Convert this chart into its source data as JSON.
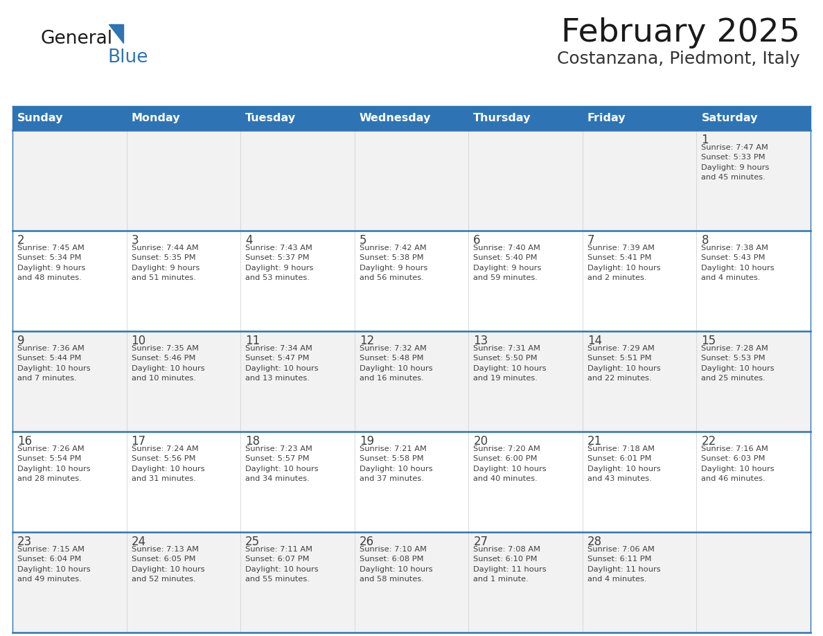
{
  "title": "February 2025",
  "subtitle": "Costanzana, Piedmont, Italy",
  "days_of_week": [
    "Sunday",
    "Monday",
    "Tuesday",
    "Wednesday",
    "Thursday",
    "Friday",
    "Saturday"
  ],
  "header_bg": "#2e74b5",
  "header_text": "#ffffff",
  "separator_color": "#2e74b5",
  "cell_bg_light": "#f2f2f2",
  "cell_bg_white": "#ffffff",
  "text_color": "#404040",
  "title_color": "#1a1a1a",
  "subtitle_color": "#333333",
  "calendar_data": [
    [
      {
        "day": null,
        "info": null
      },
      {
        "day": null,
        "info": null
      },
      {
        "day": null,
        "info": null
      },
      {
        "day": null,
        "info": null
      },
      {
        "day": null,
        "info": null
      },
      {
        "day": null,
        "info": null
      },
      {
        "day": 1,
        "info": "Sunrise: 7:47 AM\nSunset: 5:33 PM\nDaylight: 9 hours\nand 45 minutes."
      }
    ],
    [
      {
        "day": 2,
        "info": "Sunrise: 7:45 AM\nSunset: 5:34 PM\nDaylight: 9 hours\nand 48 minutes."
      },
      {
        "day": 3,
        "info": "Sunrise: 7:44 AM\nSunset: 5:35 PM\nDaylight: 9 hours\nand 51 minutes."
      },
      {
        "day": 4,
        "info": "Sunrise: 7:43 AM\nSunset: 5:37 PM\nDaylight: 9 hours\nand 53 minutes."
      },
      {
        "day": 5,
        "info": "Sunrise: 7:42 AM\nSunset: 5:38 PM\nDaylight: 9 hours\nand 56 minutes."
      },
      {
        "day": 6,
        "info": "Sunrise: 7:40 AM\nSunset: 5:40 PM\nDaylight: 9 hours\nand 59 minutes."
      },
      {
        "day": 7,
        "info": "Sunrise: 7:39 AM\nSunset: 5:41 PM\nDaylight: 10 hours\nand 2 minutes."
      },
      {
        "day": 8,
        "info": "Sunrise: 7:38 AM\nSunset: 5:43 PM\nDaylight: 10 hours\nand 4 minutes."
      }
    ],
    [
      {
        "day": 9,
        "info": "Sunrise: 7:36 AM\nSunset: 5:44 PM\nDaylight: 10 hours\nand 7 minutes."
      },
      {
        "day": 10,
        "info": "Sunrise: 7:35 AM\nSunset: 5:46 PM\nDaylight: 10 hours\nand 10 minutes."
      },
      {
        "day": 11,
        "info": "Sunrise: 7:34 AM\nSunset: 5:47 PM\nDaylight: 10 hours\nand 13 minutes."
      },
      {
        "day": 12,
        "info": "Sunrise: 7:32 AM\nSunset: 5:48 PM\nDaylight: 10 hours\nand 16 minutes."
      },
      {
        "day": 13,
        "info": "Sunrise: 7:31 AM\nSunset: 5:50 PM\nDaylight: 10 hours\nand 19 minutes."
      },
      {
        "day": 14,
        "info": "Sunrise: 7:29 AM\nSunset: 5:51 PM\nDaylight: 10 hours\nand 22 minutes."
      },
      {
        "day": 15,
        "info": "Sunrise: 7:28 AM\nSunset: 5:53 PM\nDaylight: 10 hours\nand 25 minutes."
      }
    ],
    [
      {
        "day": 16,
        "info": "Sunrise: 7:26 AM\nSunset: 5:54 PM\nDaylight: 10 hours\nand 28 minutes."
      },
      {
        "day": 17,
        "info": "Sunrise: 7:24 AM\nSunset: 5:56 PM\nDaylight: 10 hours\nand 31 minutes."
      },
      {
        "day": 18,
        "info": "Sunrise: 7:23 AM\nSunset: 5:57 PM\nDaylight: 10 hours\nand 34 minutes."
      },
      {
        "day": 19,
        "info": "Sunrise: 7:21 AM\nSunset: 5:58 PM\nDaylight: 10 hours\nand 37 minutes."
      },
      {
        "day": 20,
        "info": "Sunrise: 7:20 AM\nSunset: 6:00 PM\nDaylight: 10 hours\nand 40 minutes."
      },
      {
        "day": 21,
        "info": "Sunrise: 7:18 AM\nSunset: 6:01 PM\nDaylight: 10 hours\nand 43 minutes."
      },
      {
        "day": 22,
        "info": "Sunrise: 7:16 AM\nSunset: 6:03 PM\nDaylight: 10 hours\nand 46 minutes."
      }
    ],
    [
      {
        "day": 23,
        "info": "Sunrise: 7:15 AM\nSunset: 6:04 PM\nDaylight: 10 hours\nand 49 minutes."
      },
      {
        "day": 24,
        "info": "Sunrise: 7:13 AM\nSunset: 6:05 PM\nDaylight: 10 hours\nand 52 minutes."
      },
      {
        "day": 25,
        "info": "Sunrise: 7:11 AM\nSunset: 6:07 PM\nDaylight: 10 hours\nand 55 minutes."
      },
      {
        "day": 26,
        "info": "Sunrise: 7:10 AM\nSunset: 6:08 PM\nDaylight: 10 hours\nand 58 minutes."
      },
      {
        "day": 27,
        "info": "Sunrise: 7:08 AM\nSunset: 6:10 PM\nDaylight: 11 hours\nand 1 minute."
      },
      {
        "day": 28,
        "info": "Sunrise: 7:06 AM\nSunset: 6:11 PM\nDaylight: 11 hours\nand 4 minutes."
      },
      {
        "day": null,
        "info": null
      }
    ]
  ]
}
